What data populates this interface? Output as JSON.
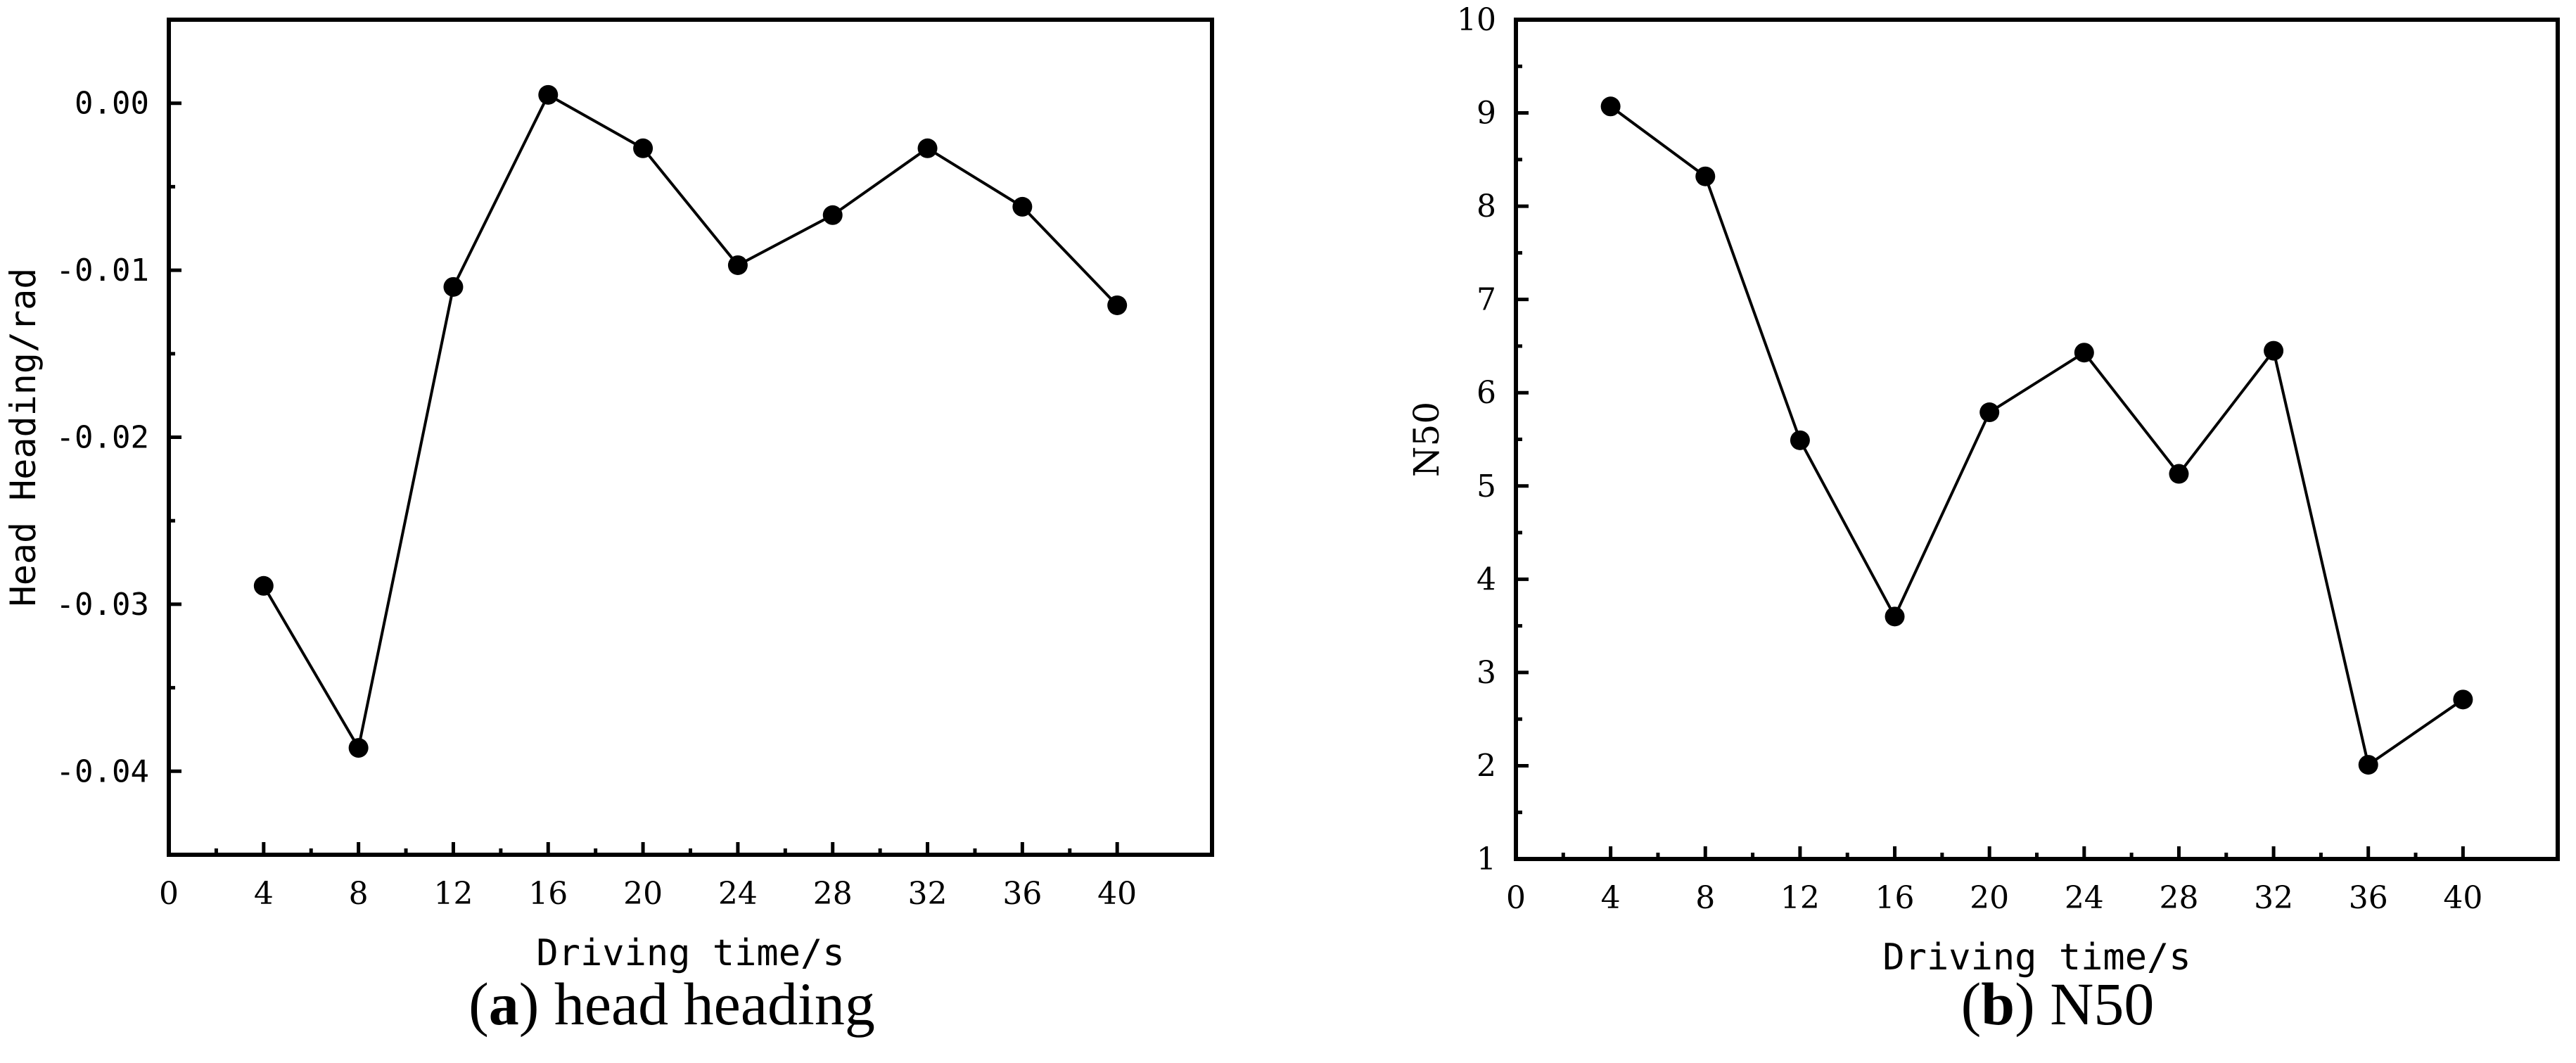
{
  "chart_data": [
    {
      "type": "line",
      "panel_label": "a",
      "caption": "head heading",
      "xlabel": "Driving time/s",
      "ylabel": "Head Heading/rad",
      "xlim": [
        0,
        44
      ],
      "ylim": [
        -0.045,
        0.005
      ],
      "xticks": [
        "0",
        "4",
        "8",
        "12",
        "16",
        "20",
        "24",
        "28",
        "32",
        "36",
        "40"
      ],
      "yticks": [
        "0.00",
        "-0.01",
        "-0.02",
        "-0.03",
        "-0.04"
      ],
      "ytick_values": [
        0.0,
        -0.01,
        -0.02,
        -0.03,
        -0.04
      ],
      "x": [
        4,
        8,
        12,
        16,
        20,
        24,
        28,
        32,
        36,
        40
      ],
      "y": [
        -0.0289,
        -0.0386,
        -0.011,
        0.0005,
        -0.0027,
        -0.0097,
        -0.0067,
        -0.0027,
        -0.0062,
        -0.0121
      ],
      "grid": false,
      "marker": "filled-circle",
      "color": "#000000"
    },
    {
      "type": "line",
      "panel_label": "b",
      "caption": "N50",
      "xlabel": "Driving time/s",
      "ylabel": "N50",
      "xlim": [
        0,
        44
      ],
      "ylim": [
        1,
        10
      ],
      "xticks": [
        "0",
        "4",
        "8",
        "12",
        "16",
        "20",
        "24",
        "28",
        "32",
        "36",
        "40"
      ],
      "yticks": [
        "1",
        "2",
        "3",
        "4",
        "5",
        "6",
        "7",
        "8",
        "9",
        "10"
      ],
      "ytick_values": [
        1,
        2,
        3,
        4,
        5,
        6,
        7,
        8,
        9,
        10
      ],
      "x": [
        4,
        8,
        12,
        16,
        20,
        24,
        28,
        32,
        36,
        40
      ],
      "y": [
        9.07,
        8.32,
        5.49,
        3.6,
        5.79,
        6.43,
        5.13,
        6.45,
        2.01,
        2.71
      ],
      "grid": false,
      "marker": "filled-circle",
      "color": "#000000"
    }
  ]
}
